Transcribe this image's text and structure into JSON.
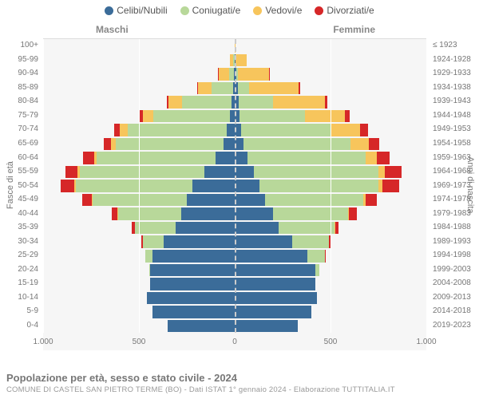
{
  "chart": {
    "type": "population-pyramid",
    "background_color": "#f6f6f6",
    "grid_color": "#ffffff",
    "center_line_color": "#cccccc",
    "font_family": "Arial",
    "label_fontsize": 10,
    "legend_fontsize": 12,
    "side_label_fontsize": 12,
    "colors": {
      "celibi": "#3b6c99",
      "coniugati": "#b8d89a",
      "vedovi": "#f7c55c",
      "divorziati": "#d62728"
    },
    "legend": [
      {
        "key": "celibi",
        "label": "Celibi/Nubili"
      },
      {
        "key": "coniugati",
        "label": "Coniugati/e"
      },
      {
        "key": "vedovi",
        "label": "Vedovi/e"
      },
      {
        "key": "divorziati",
        "label": "Divorziati/e"
      }
    ],
    "male_label": "Maschi",
    "female_label": "Femmine",
    "y_axis_left_title": "Fasce di età",
    "y_axis_right_title": "Anni di nascita",
    "x_max": 1000,
    "x_ticks": [
      {
        "pos": -1000,
        "label": "1.000"
      },
      {
        "pos": -500,
        "label": "500"
      },
      {
        "pos": 0,
        "label": "0"
      },
      {
        "pos": 500,
        "label": "500"
      },
      {
        "pos": 1000,
        "label": "1.000"
      }
    ],
    "rows": [
      {
        "age": "100+",
        "birth": "≤ 1923",
        "m": {
          "celibi": 0,
          "coniugati": 0,
          "vedovi": 2,
          "divorziati": 0
        },
        "f": {
          "celibi": 0,
          "coniugati": 0,
          "vedovi": 5,
          "divorziati": 0
        }
      },
      {
        "age": "95-99",
        "birth": "1924-1928",
        "m": {
          "celibi": 2,
          "coniugati": 5,
          "vedovi": 20,
          "divorziati": 0
        },
        "f": {
          "celibi": 3,
          "coniugati": 3,
          "vedovi": 55,
          "divorziati": 0
        }
      },
      {
        "age": "90-94",
        "birth": "1929-1933",
        "m": {
          "celibi": 5,
          "coniugati": 25,
          "vedovi": 55,
          "divorziati": 2
        },
        "f": {
          "celibi": 8,
          "coniugati": 10,
          "vedovi": 160,
          "divorziati": 3
        }
      },
      {
        "age": "85-89",
        "birth": "1934-1938",
        "m": {
          "celibi": 10,
          "coniugati": 110,
          "vedovi": 70,
          "divorziati": 5
        },
        "f": {
          "celibi": 15,
          "coniugati": 60,
          "vedovi": 260,
          "divorziati": 8
        }
      },
      {
        "age": "80-84",
        "birth": "1939-1943",
        "m": {
          "celibi": 15,
          "coniugati": 260,
          "vedovi": 70,
          "divorziati": 10
        },
        "f": {
          "celibi": 20,
          "coniugati": 180,
          "vedovi": 270,
          "divorziati": 15
        }
      },
      {
        "age": "75-79",
        "birth": "1944-1948",
        "m": {
          "celibi": 25,
          "coniugati": 400,
          "vedovi": 55,
          "divorziati": 20
        },
        "f": {
          "celibi": 25,
          "coniugati": 340,
          "vedovi": 210,
          "divorziati": 25
        }
      },
      {
        "age": "70-74",
        "birth": "1949-1953",
        "m": {
          "celibi": 40,
          "coniugati": 520,
          "vedovi": 40,
          "divorziati": 30
        },
        "f": {
          "celibi": 35,
          "coniugati": 470,
          "vedovi": 150,
          "divorziati": 40
        }
      },
      {
        "age": "65-69",
        "birth": "1954-1958",
        "m": {
          "celibi": 60,
          "coniugati": 560,
          "vedovi": 25,
          "divorziati": 40
        },
        "f": {
          "celibi": 45,
          "coniugati": 560,
          "vedovi": 95,
          "divorziati": 55
        }
      },
      {
        "age": "60-64",
        "birth": "1959-1963",
        "m": {
          "celibi": 100,
          "coniugati": 620,
          "vedovi": 15,
          "divorziati": 55
        },
        "f": {
          "celibi": 65,
          "coniugati": 620,
          "vedovi": 55,
          "divorziati": 70
        }
      },
      {
        "age": "55-59",
        "birth": "1964-1968",
        "m": {
          "celibi": 160,
          "coniugati": 650,
          "vedovi": 10,
          "divorziati": 65
        },
        "f": {
          "celibi": 100,
          "coniugati": 650,
          "vedovi": 35,
          "divorziati": 85
        }
      },
      {
        "age": "50-54",
        "birth": "1969-1973",
        "m": {
          "celibi": 220,
          "coniugati": 610,
          "vedovi": 8,
          "divorziati": 70
        },
        "f": {
          "celibi": 130,
          "coniugati": 620,
          "vedovi": 20,
          "divorziati": 90
        }
      },
      {
        "age": "45-49",
        "birth": "1974-1978",
        "m": {
          "celibi": 250,
          "coniugati": 490,
          "vedovi": 5,
          "divorziati": 50
        },
        "f": {
          "celibi": 160,
          "coniugati": 510,
          "vedovi": 12,
          "divorziati": 60
        }
      },
      {
        "age": "40-44",
        "birth": "1979-1983",
        "m": {
          "celibi": 280,
          "coniugati": 330,
          "vedovi": 3,
          "divorziati": 30
        },
        "f": {
          "celibi": 200,
          "coniugati": 390,
          "vedovi": 6,
          "divorziati": 40
        }
      },
      {
        "age": "35-39",
        "birth": "1984-1988",
        "m": {
          "celibi": 310,
          "coniugati": 210,
          "vedovi": 2,
          "divorziati": 15
        },
        "f": {
          "celibi": 230,
          "coniugati": 290,
          "vedovi": 3,
          "divorziati": 20
        }
      },
      {
        "age": "30-34",
        "birth": "1989-1993",
        "m": {
          "celibi": 370,
          "coniugati": 110,
          "vedovi": 0,
          "divorziati": 8
        },
        "f": {
          "celibi": 300,
          "coniugati": 190,
          "vedovi": 1,
          "divorziati": 10
        }
      },
      {
        "age": "25-29",
        "birth": "1994-1998",
        "m": {
          "celibi": 430,
          "coniugati": 35,
          "vedovi": 0,
          "divorziati": 2
        },
        "f": {
          "celibi": 380,
          "coniugati": 90,
          "vedovi": 0,
          "divorziati": 3
        }
      },
      {
        "age": "20-24",
        "birth": "1999-2003",
        "m": {
          "celibi": 440,
          "coniugati": 8,
          "vedovi": 0,
          "divorziati": 0
        },
        "f": {
          "celibi": 420,
          "coniugati": 20,
          "vedovi": 0,
          "divorziati": 0
        }
      },
      {
        "age": "15-19",
        "birth": "2004-2008",
        "m": {
          "celibi": 440,
          "coniugati": 0,
          "vedovi": 0,
          "divorziati": 0
        },
        "f": {
          "celibi": 420,
          "coniugati": 0,
          "vedovi": 0,
          "divorziati": 0
        }
      },
      {
        "age": "10-14",
        "birth": "2009-2013",
        "m": {
          "celibi": 460,
          "coniugati": 0,
          "vedovi": 0,
          "divorziati": 0
        },
        "f": {
          "celibi": 430,
          "coniugati": 0,
          "vedovi": 0,
          "divorziati": 0
        }
      },
      {
        "age": "5-9",
        "birth": "2014-2018",
        "m": {
          "celibi": 430,
          "coniugati": 0,
          "vedovi": 0,
          "divorziati": 0
        },
        "f": {
          "celibi": 400,
          "coniugati": 0,
          "vedovi": 0,
          "divorziati": 0
        }
      },
      {
        "age": "0-4",
        "birth": "2019-2023",
        "m": {
          "celibi": 350,
          "coniugati": 0,
          "vedovi": 0,
          "divorziati": 0
        },
        "f": {
          "celibi": 330,
          "coniugati": 0,
          "vedovi": 0,
          "divorziati": 0
        }
      }
    ],
    "title": "Popolazione per età, sesso e stato civile - 2024",
    "source": "COMUNE DI CASTEL SAN PIETRO TERME (BO) - Dati ISTAT 1° gennaio 2024 - Elaborazione TUTTITALIA.IT"
  }
}
